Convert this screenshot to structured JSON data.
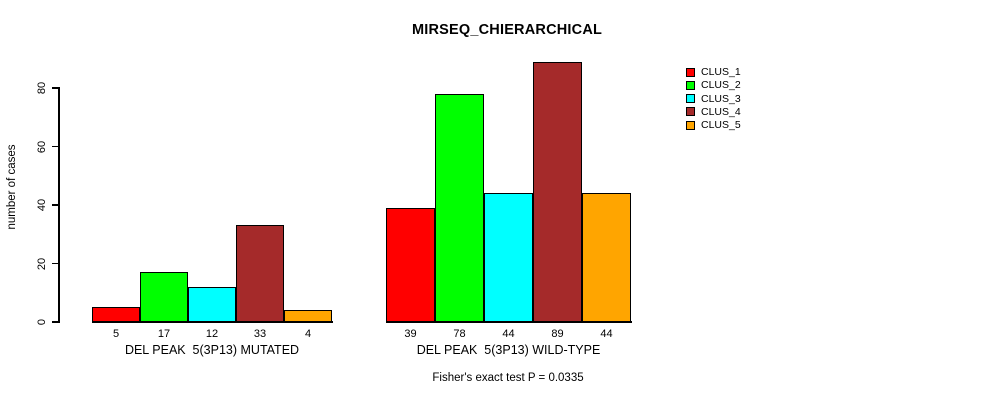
{
  "chart_data": {
    "type": "bar",
    "title": "MIRSEQ_CHIERARCHICAL",
    "ylabel": "number of cases",
    "xlabel": "",
    "ylim": [
      0,
      80
    ],
    "yticks": [
      0,
      20,
      40,
      60,
      80
    ],
    "ytick_labels": [
      "0",
      "20",
      "40",
      "60",
      "80"
    ],
    "grid": false,
    "legend_position": "right",
    "series": [
      {
        "name": "CLUS_1",
        "color": "#ff0000"
      },
      {
        "name": "CLUS_2",
        "color": "#00ff00"
      },
      {
        "name": "CLUS_3",
        "color": "#00ffff"
      },
      {
        "name": "CLUS_4",
        "color": "#a52a2a"
      },
      {
        "name": "CLUS_5",
        "color": "#ffa500"
      }
    ],
    "groups": [
      {
        "label": "DEL PEAK  5(3P13) MUTATED",
        "values": [
          5,
          17,
          12,
          33,
          4
        ],
        "value_labels": [
          "5",
          "17",
          "12",
          "33",
          "4"
        ]
      },
      {
        "label": "DEL PEAK  5(3P13) WILD-TYPE",
        "values": [
          39,
          78,
          44,
          89,
          44
        ],
        "value_labels": [
          "39",
          "78",
          "44",
          "89",
          "44"
        ]
      }
    ],
    "annotation": "Fisher's exact test P = 0.0335"
  }
}
